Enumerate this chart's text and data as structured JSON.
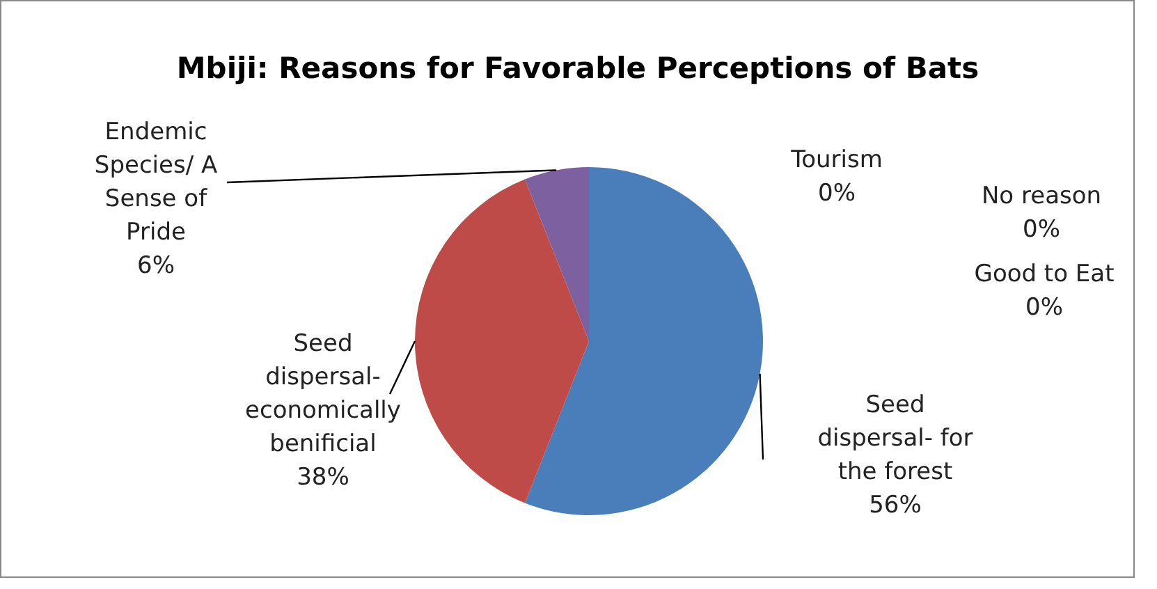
{
  "chart_data": {
    "type": "pie",
    "title": "Mbiji: Reasons for Favorable Perceptions of Bats",
    "categories": [
      "Seed dispersal- for the forest",
      "Seed dispersal- economically benificial",
      "Endemic Species/ A Sense of Pride",
      "Tourism",
      "No reason",
      "Good to Eat"
    ],
    "values": [
      56,
      38,
      6,
      0,
      0,
      0
    ],
    "value_labels": [
      "56%",
      "38%",
      "6%",
      "0%",
      "0%",
      "0%"
    ],
    "colors": [
      "#4a7ebb",
      "#be4b48",
      "#7d60a0",
      "#98b954",
      "#46aac5",
      "#f79646"
    ]
  }
}
